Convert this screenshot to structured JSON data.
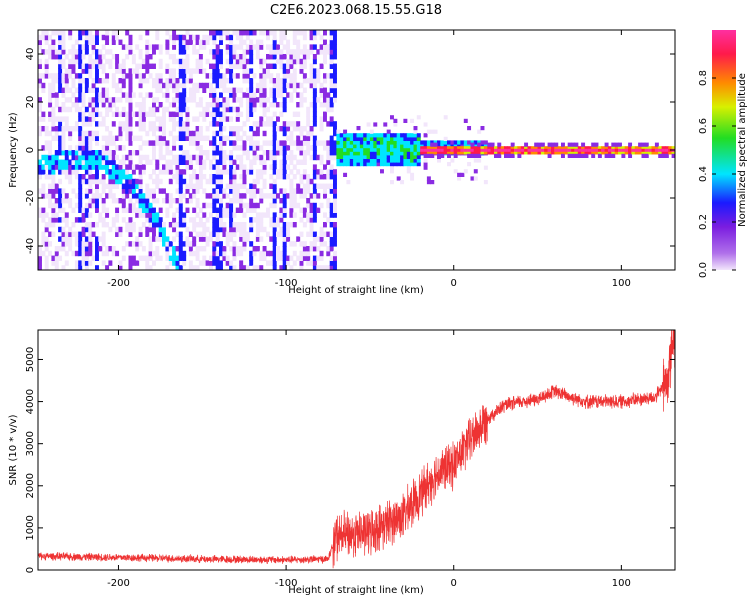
{
  "title": "C2E6.2023.068.15.55.G18",
  "colors": {
    "snr_line": "#ee3333",
    "colormap": [
      "#f2e6fb",
      "#8a2be2",
      "#1a1aff",
      "#00e5ff",
      "#22dd22",
      "#d8f000",
      "#ff8a00",
      "#ff1a4a",
      "#ff2fa0"
    ]
  },
  "chart_data": [
    {
      "type": "heatmap",
      "description_panel": "spectrogram",
      "xlabel": "Height of straight line (km)",
      "ylabel": "Frequency (Hz)",
      "xlim": [
        -248,
        132
      ],
      "ylim": [
        -50,
        50
      ],
      "x_ticks": [
        -200,
        -100,
        0,
        100
      ],
      "y_ticks": [
        -40,
        -20,
        0,
        20,
        40
      ],
      "colorbar": {
        "label": "Normalized spectral amplitude",
        "range": [
          0,
          1
        ],
        "ticks": [
          "0.0",
          "0.2",
          "0.4",
          "0.6",
          "0.8"
        ]
      },
      "features": [
        {
          "name": "broad noise region",
          "x_range": [
            -248,
            -70
          ],
          "y_range": [
            -50,
            50
          ],
          "amplitude": 0.1
        },
        {
          "name": "curved track",
          "points": [
            [
              -248,
              -8
            ],
            [
              -230,
              -4
            ],
            [
              -210,
              -6
            ],
            [
              -190,
              -18
            ],
            [
              -175,
              -35
            ],
            [
              -165,
              -50
            ]
          ],
          "amplitude": 0.25
        },
        {
          "name": "onset cluster",
          "x_range": [
            -70,
            -20
          ],
          "y_center": 0,
          "amplitude": 0.45
        },
        {
          "name": "steady carrier",
          "x_range": [
            -20,
            132
          ],
          "y_center": 0,
          "amplitude": 0.95
        }
      ]
    },
    {
      "type": "line",
      "xlabel": "Height of straight line (km)",
      "ylabel": "SNR (10 * v/v)",
      "xlim": [
        -248,
        132
      ],
      "ylim": [
        0,
        5700
      ],
      "x_ticks": [
        -200,
        -100,
        0,
        100
      ],
      "y_ticks": [
        0,
        1000,
        2000,
        3000,
        4000,
        5000
      ],
      "series": [
        {
          "x": [
            -248,
            -200,
            -150,
            -100,
            -75,
            -70,
            -50,
            -30,
            -20,
            -10,
            0,
            10,
            20,
            30,
            40,
            50,
            60,
            70,
            80,
            100,
            120,
            128,
            130
          ],
          "y": [
            330,
            300,
            260,
            240,
            260,
            800,
            900,
            1300,
            1800,
            2300,
            2500,
            3100,
            3600,
            3900,
            4000,
            4050,
            4250,
            4100,
            4000,
            4000,
            4100,
            4500,
            5400
          ]
        }
      ]
    }
  ]
}
